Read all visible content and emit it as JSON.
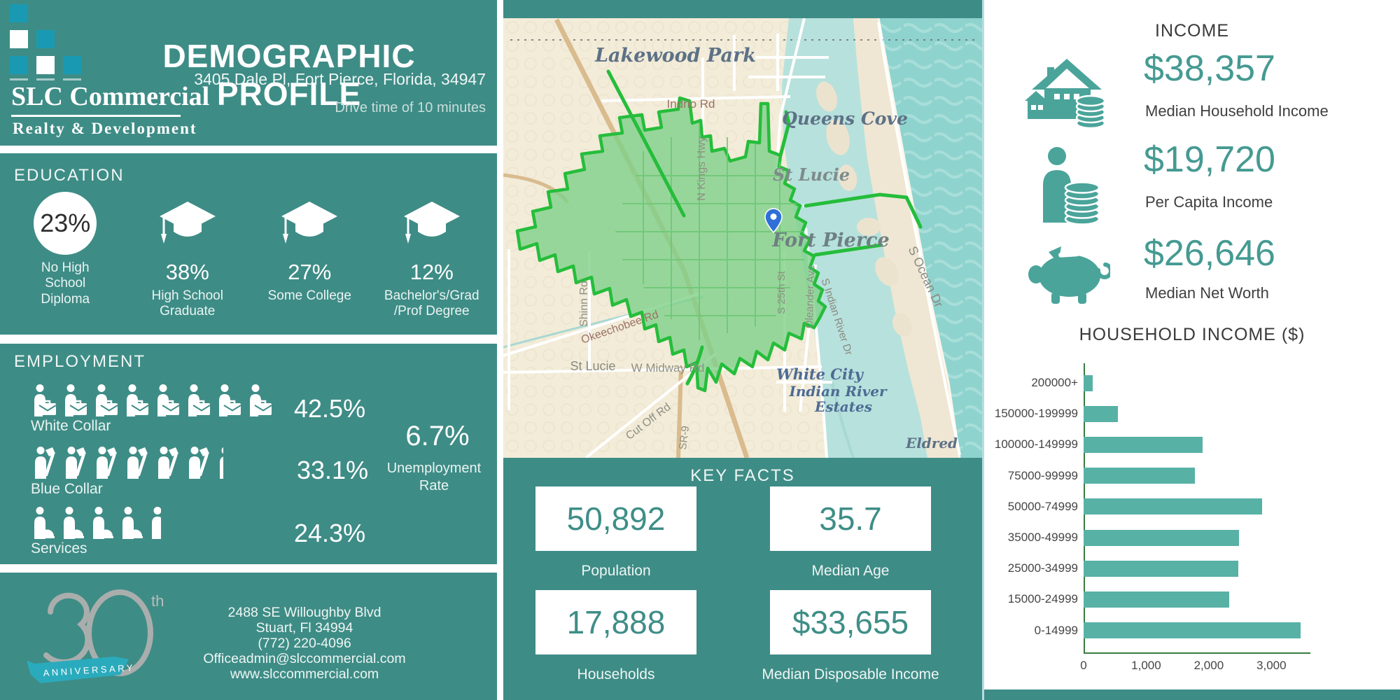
{
  "colors": {
    "teal_background": "#3e8c86",
    "logo_cyan": "#1a9ab2",
    "ribbon_cyan": "#2aabbd",
    "stat_teal": "#459a92",
    "bar_teal": "#57b1a5",
    "axis_green": "#3a7c41",
    "drive_polygon_fill": "#7fd189",
    "drive_polygon_stroke": "#25bd3b",
    "map_land": "#f2ecd9",
    "map_water": "#b7e1dc",
    "map_ocean": "#8fd3cf",
    "pin_blue": "#2e6fd8"
  },
  "header": {
    "title": "DEMOGRAPHIC PROFILE",
    "address": "3405 Dale Pl, Fort Pierce, Florida, 34947",
    "drive_time": "Drive time of 10 minutes",
    "logo": {
      "name": "SLC Commercial",
      "tagline": "Realty & Development"
    }
  },
  "education": {
    "section_label": "EDUCATION",
    "items": [
      {
        "icon": "percent-circle",
        "value": "23%",
        "label": "No High\nSchool\nDiploma"
      },
      {
        "icon": "graduation-cap-icon",
        "value": "38%",
        "label": "High School\nGraduate"
      },
      {
        "icon": "graduation-cap-icon",
        "value": "27%",
        "label": "Some College"
      },
      {
        "icon": "graduation-cap-icon",
        "value": "12%",
        "label": "Bachelor's/Grad\n/Prof Degree"
      }
    ]
  },
  "employment": {
    "section_label": "EMPLOYMENT",
    "rows": [
      {
        "icon": "white-collar-worker-icon",
        "icon_count": 8,
        "label": "White Collar",
        "value": "42.5%"
      },
      {
        "icon": "blue-collar-worker-icon",
        "icon_count": 6.3,
        "label": "Blue Collar",
        "value": "33.1%"
      },
      {
        "icon": "services-worker-icon",
        "icon_count": 4.5,
        "label": "Services",
        "value": "24.3%"
      }
    ],
    "unemployment": {
      "value": "6.7%",
      "label": "Unemployment\nRate"
    }
  },
  "map": {
    "city_labels": {
      "lakewood_park": "Lakewood Park",
      "queens_cove": "Queens Cove",
      "st_lucie_city": "St Lucie",
      "fort_pierce": "Fort Pierce",
      "white_city": "White City",
      "indian_river_line1": "Indian River",
      "indian_river_line2": "Estates",
      "eldred": "Eldred",
      "st_lucie_small": "St Lucie"
    },
    "road_labels": {
      "indrio_rd": "Indrio Rd",
      "n_kings_hwy": "N Kings Hwy",
      "shinn_rd": "Shinn Rd",
      "okeechobee_rd": "Okeechobee Rd",
      "w_midway_rd": "W Midway Rd",
      "cut_off_rd": "Cut Off Rd",
      "sr_9": "SR-9",
      "s_25th_st": "S 25th St",
      "oleander_ave": "Oleander Ave",
      "s_indian_river_dr": "S Indian River Dr",
      "s_ocean_dr": "S Ocean Dr"
    }
  },
  "key_facts": {
    "section_label": "KEY FACTS",
    "cards": [
      {
        "value": "50,892",
        "label": "Population"
      },
      {
        "value": "35.7",
        "label": "Median Age"
      },
      {
        "value": "17,888",
        "label": "Households"
      },
      {
        "value": "$33,655",
        "label": "Median Disposable Income"
      }
    ]
  },
  "income": {
    "section_label": "INCOME",
    "stats": [
      {
        "icon": "house-coins-icon",
        "value": "$38,357",
        "label": "Median Household Income"
      },
      {
        "icon": "person-coins-icon",
        "value": "$19,720",
        "label": "Per Capita Income"
      },
      {
        "icon": "piggy-bank-icon",
        "value": "$26,646",
        "label": "Median Net Worth"
      }
    ]
  },
  "chart_data": {
    "type": "bar",
    "orientation": "horizontal",
    "title": "HOUSEHOLD INCOME ($)",
    "categories": [
      "200000+",
      "150000-199999",
      "100000-149999",
      "75000-99999",
      "50000-74999",
      "35000-49999",
      "25000-34999",
      "15000-24999",
      "0-14999"
    ],
    "values": [
      150,
      550,
      1900,
      1780,
      2850,
      2480,
      2470,
      2330,
      3470
    ],
    "xlabel": "",
    "ylabel": "",
    "xlim": [
      0,
      3600
    ],
    "x_ticks": [
      "0",
      "1,000",
      "2,000",
      "3,000"
    ],
    "x_tick_values": [
      0,
      1000,
      2000,
      3000
    ],
    "grid": false,
    "legend": "none",
    "bar_color": "#57b1a5",
    "axis_color": "#3a7c41"
  },
  "footer": {
    "anniversary": {
      "number": "30",
      "suffix": "th",
      "ribbon": "ANNIVERSARY"
    },
    "contact_lines": [
      "2488 SE Willoughby Blvd",
      "Stuart, Fl 34994",
      "(772) 220-4096",
      "Officeadmin@slccommercial.com",
      "www.slccommercial.com"
    ]
  }
}
